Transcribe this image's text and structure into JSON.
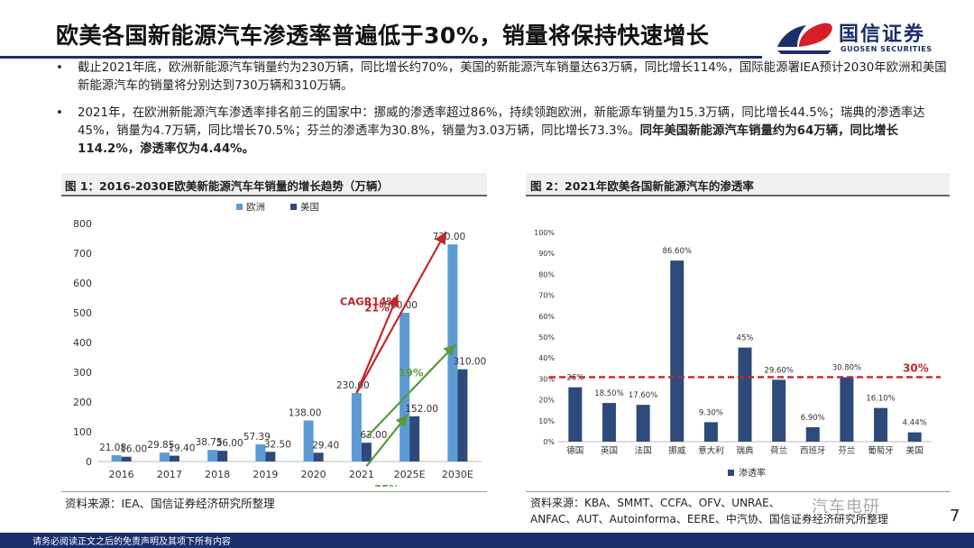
{
  "header": {
    "title": "欧美各国新能源汽车渗透率普遍低于30%，销量将保持快速增长",
    "logo_cn": "国信证券",
    "logo_en": "GUOSEN SECURITIES"
  },
  "bullets": {
    "b1": "截止2021年底，欧洲新能源汽车销量约为230万辆，同比增长约70%，美国的新能源汽车销量达63万辆，同比增长114%，国际能源署IEA预计2030年欧洲和美国新能源汽车的销量将分别达到730万辆和310万辆。",
    "b2_plain": "2021年，在欧洲新能源汽车渗透率排名前三的国家中：挪威的渗透率超过86%，持续领跑欧洲，新能源车销量为15.3万辆，同比增长44.5%；瑞典的渗透率达45%，销量为4.7万辆，同比增长70.5%；芬兰的渗透率为30.8%，销量为3.03万辆，同比增长73.3%。",
    "b2_bold": "同年美国新能源汽车销量约为64万辆，同比增长114.2%，渗透率仅为4.44%。"
  },
  "figure1": {
    "title": "图 1：2016-2030E欧美新能源汽车年销量的增长趋势（万辆）",
    "source": "资料来源：IEA、国信证券经济研究所整理"
  },
  "figure2": {
    "title": "图 2：2021年欧美各国新能源汽车的渗透率",
    "source_line1": "资料来源：KBA、SMMT、CCFA、OFV、UNRAE、",
    "source_line2": "ANFAC、AUT、Autoinforma、EERE、中汽协、国信证券经济研究所整理"
  },
  "footer": {
    "disclaimer": "请务必阅读正文之后的免责声明及其项下所有内容",
    "page": "7",
    "watermark": "汽车电研"
  },
  "chart_data": [
    {
      "type": "bar",
      "categories": [
        "2016",
        "2017",
        "2018",
        "2019",
        "2020",
        "2021",
        "2025E",
        "2030E"
      ],
      "series": [
        {
          "name": "欧洲",
          "values": [
            21.08,
            29.85,
            38.75,
            57.39,
            138.0,
            230.0,
            500.0,
            730.0
          ],
          "labels": [
            "21.08",
            "29.85",
            "38.75",
            "57.39",
            "138.00",
            "230.00",
            "500.00",
            "730.00"
          ],
          "color": "#5b9bd5"
        },
        {
          "name": "美国",
          "values": [
            16.0,
            19.4,
            36.0,
            32.5,
            29.4,
            63.0,
            152.0,
            310.0
          ],
          "labels": [
            "16.00",
            "19.40",
            "36.00",
            "32.50",
            "29.40",
            "63.00",
            "152.00",
            "310.00"
          ],
          "color": "#2e4a7a"
        }
      ],
      "ylim": [
        0,
        800
      ],
      "yticks": [
        0,
        100,
        200,
        300,
        400,
        500,
        600,
        700,
        800
      ],
      "legend_position": "top-center",
      "grid": false,
      "annotations": [
        {
          "text": "CAGR14%",
          "color": "#c0282d",
          "from_category": "2021",
          "from_value": 230,
          "to_category": "2030E",
          "to_value": 730
        },
        {
          "text": "21%",
          "color": "#c0282d",
          "from_category": "2021",
          "from_value": 230,
          "to_category": "2025E",
          "to_value": 500
        },
        {
          "text": "19%",
          "color": "#5a9a3a",
          "from_category": "2021",
          "from_value": 63,
          "to_category": "2030E",
          "to_value": 310
        },
        {
          "text": "25%",
          "color": "#5a9a3a",
          "from_category": "2021",
          "from_value": 63,
          "to_category": "2025E",
          "to_value": 152
        }
      ]
    },
    {
      "type": "bar",
      "categories": [
        "德国",
        "英国",
        "法国",
        "挪威",
        "意大利",
        "瑞典",
        "荷兰",
        "西班牙",
        "芬兰",
        "葡萄牙",
        "美国"
      ],
      "series": [
        {
          "name": "渗透率",
          "values": [
            26,
            18.5,
            17.6,
            86.6,
            9.3,
            45,
            29.6,
            6.9,
            30.8,
            16.1,
            4.44
          ],
          "labels": [
            "26%",
            "18.50%",
            "17.60%",
            "86.60%",
            "9.30%",
            "45%",
            "29.60%",
            "6.90%",
            "30.80%",
            "16.10%",
            "4.44%"
          ],
          "color": "#2e4a7a"
        }
      ],
      "ylim": [
        0,
        100
      ],
      "yticks": [
        "0%",
        "10%",
        "20%",
        "30%",
        "40%",
        "50%",
        "60%",
        "70%",
        "80%",
        "90%",
        "100%"
      ],
      "legend_position": "bottom-center",
      "grid": false,
      "reference_line": {
        "value": 30,
        "label": "30%",
        "color": "#c0282d",
        "style": "dashed"
      }
    }
  ]
}
